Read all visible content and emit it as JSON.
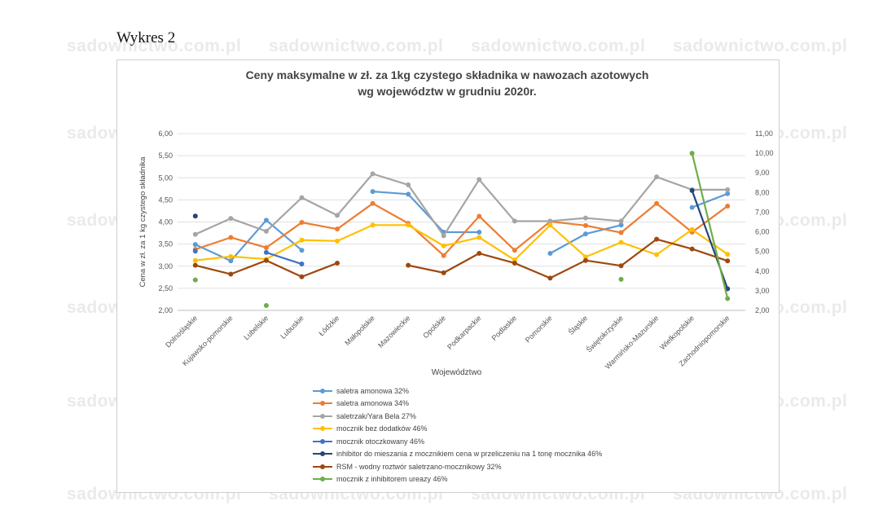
{
  "page_label": "Wykres 2",
  "watermark_text": "sadownictwo.com.pl",
  "chart_data": {
    "type": "line",
    "title_lines": [
      "Ceny maksymalne w zł. za 1kg czystego składnika w nawozach azotowych",
      "wg województw w grudniu 2020r."
    ],
    "xlabel": "Województwo",
    "ylabel": "Cena w zł. za 1 kg czystego składnika",
    "y_left": {
      "ylim": [
        2.0,
        6.0
      ],
      "ticks": [
        "2,00",
        "2,50",
        "3,00",
        "3,50",
        "4,00",
        "4,50",
        "5,00",
        "5,50",
        "6,00"
      ]
    },
    "y_right": {
      "ylim": [
        2.0,
        11.0
      ],
      "ticks": [
        "2,00",
        "3,00",
        "4,00",
        "5,00",
        "6,00",
        "7,00",
        "8,00",
        "9,00",
        "10,00",
        "11,00"
      ]
    },
    "grid": true,
    "legend_position": "bottom",
    "categories": [
      "Dolnośląskie",
      "Kujawsko-pomorskie",
      "Lubelskie",
      "Lubuskie",
      "Łódzkie",
      "Małopolskie",
      "Mazowieckie",
      "Opolskie",
      "Podkarpackie",
      "Podlaskie",
      "Pomorskie",
      "Śląskie",
      "Świętokrzyskie",
      "Warmińsko-Mazurskie",
      "Wielkopolskie",
      "Zachodniopomorskie"
    ],
    "series": [
      {
        "name": "saletra amonowa 32%",
        "color": "#5b9bd5",
        "axis": "left",
        "values": [
          3.49,
          3.12,
          4.04,
          3.36,
          null,
          4.69,
          4.63,
          3.77,
          3.77,
          null,
          3.29,
          3.73,
          3.93,
          null,
          4.33,
          4.64
        ]
      },
      {
        "name": "saletra amonowa 34%",
        "color": "#ed7d31",
        "axis": "left",
        "values": [
          3.38,
          3.65,
          3.42,
          3.99,
          3.84,
          4.42,
          3.97,
          3.24,
          4.13,
          3.36,
          4.01,
          3.92,
          3.76,
          4.42,
          3.77,
          4.36
        ]
      },
      {
        "name": "saletrzak/Yara Bela 27%",
        "color": "#a5a5a5",
        "axis": "left",
        "values": [
          3.72,
          4.08,
          3.79,
          4.55,
          4.15,
          5.09,
          4.84,
          3.69,
          4.96,
          4.02,
          4.02,
          4.09,
          4.02,
          5.02,
          4.73,
          4.73
        ]
      },
      {
        "name": "mocznik bez dodatków 46%",
        "color": "#ffc000",
        "axis": "left",
        "values": [
          3.13,
          3.22,
          3.16,
          3.59,
          3.57,
          3.93,
          3.93,
          3.46,
          3.65,
          3.14,
          3.93,
          3.21,
          3.54,
          3.26,
          3.83,
          3.27
        ]
      },
      {
        "name": "mocznik otoczkowany 46%",
        "color": "#4472c4",
        "axis": "left",
        "values": [
          3.34,
          null,
          3.31,
          3.05,
          null,
          null,
          null,
          null,
          null,
          null,
          null,
          null,
          null,
          null,
          null,
          null
        ]
      },
      {
        "name": "inhibitor do mieszania z mocznikiem cena  w przeliczeniu na 1 tonę mocznika  46%",
        "color": "#264478",
        "axis": "right",
        "values": [
          6.8,
          null,
          null,
          null,
          null,
          null,
          null,
          null,
          null,
          null,
          null,
          null,
          null,
          null,
          8.1,
          3.1
        ]
      },
      {
        "name": "RSM - wodny roztwór saletrzano-mocznikowy 32%",
        "color": "#9e480e",
        "axis": "left",
        "values": [
          3.02,
          2.82,
          3.13,
          2.76,
          3.07,
          null,
          3.02,
          2.85,
          3.29,
          3.07,
          2.73,
          3.13,
          3.01,
          3.61,
          3.39,
          3.12
        ]
      },
      {
        "name": "mocznik z inhibitorem ureazy 46%",
        "color": "#70ad47",
        "axis": "right",
        "values": [
          3.55,
          null,
          2.25,
          null,
          null,
          null,
          null,
          null,
          null,
          null,
          null,
          null,
          3.58,
          null,
          10.0,
          2.6
        ]
      }
    ]
  }
}
